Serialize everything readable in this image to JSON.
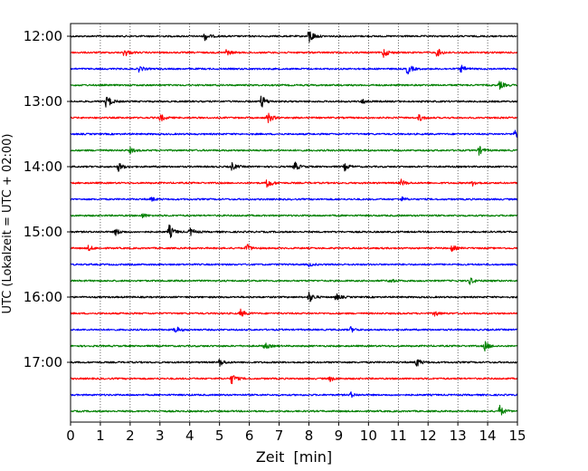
{
  "chart_data": {
    "type": "line",
    "title": "",
    "xlabel": "Zeit  [min]",
    "ylabel": "UTC (Lokalzeit = UTC + 02:00)",
    "xlim": [
      0,
      15
    ],
    "xticks": [
      0,
      1,
      2,
      3,
      4,
      5,
      6,
      7,
      8,
      9,
      10,
      11,
      12,
      13,
      14,
      15
    ],
    "x_grid": "dotted vertical lines at each minute",
    "y_tick_labels": [
      "12:00",
      "13:00",
      "14:00",
      "15:00",
      "16:00",
      "17:00"
    ],
    "trace_interval_minutes": 15,
    "trace_colors": [
      "#000000",
      "#ff0000",
      "#0000ff",
      "#008000"
    ],
    "traces": [
      {
        "start": "12:00",
        "color": "#000000",
        "bursts": [
          {
            "t": 4.5,
            "amp": 1.0
          },
          {
            "t": 8.0,
            "amp": 1.9
          }
        ]
      },
      {
        "start": "12:15",
        "color": "#ff0000",
        "bursts": [
          {
            "t": 1.8,
            "amp": 1.0
          },
          {
            "t": 5.2,
            "amp": 0.8
          },
          {
            "t": 10.5,
            "amp": 1.1
          },
          {
            "t": 12.3,
            "amp": 1.0
          }
        ]
      },
      {
        "start": "12:30",
        "color": "#0000ff",
        "bursts": [
          {
            "t": 2.3,
            "amp": 0.7
          },
          {
            "t": 11.3,
            "amp": 1.3
          },
          {
            "t": 13.1,
            "amp": 0.8
          }
        ]
      },
      {
        "start": "12:45",
        "color": "#008000",
        "bursts": [
          {
            "t": 14.4,
            "amp": 0.9
          }
        ]
      },
      {
        "start": "13:00",
        "color": "#000000",
        "bursts": [
          {
            "t": 1.2,
            "amp": 1.7
          },
          {
            "t": 6.4,
            "amp": 1.5
          },
          {
            "t": 9.8,
            "amp": 0.6
          }
        ]
      },
      {
        "start": "13:15",
        "color": "#ff0000",
        "bursts": [
          {
            "t": 3.0,
            "amp": 0.9
          },
          {
            "t": 6.6,
            "amp": 1.4
          },
          {
            "t": 11.7,
            "amp": 0.8
          }
        ]
      },
      {
        "start": "13:30",
        "color": "#0000ff",
        "bursts": [
          {
            "t": 14.9,
            "amp": 1.1
          }
        ]
      },
      {
        "start": "13:45",
        "color": "#008000",
        "bursts": [
          {
            "t": 2.0,
            "amp": 0.6
          },
          {
            "t": 13.7,
            "amp": 1.0
          }
        ]
      },
      {
        "start": "14:00",
        "color": "#000000",
        "bursts": [
          {
            "t": 1.6,
            "amp": 1.0
          },
          {
            "t": 5.4,
            "amp": 0.9
          },
          {
            "t": 7.5,
            "amp": 1.2
          },
          {
            "t": 9.2,
            "amp": 0.8
          }
        ]
      },
      {
        "start": "14:15",
        "color": "#ff0000",
        "bursts": [
          {
            "t": 6.6,
            "amp": 1.2
          },
          {
            "t": 11.1,
            "amp": 0.7
          },
          {
            "t": 13.5,
            "amp": 0.6
          }
        ]
      },
      {
        "start": "14:30",
        "color": "#0000ff",
        "bursts": [
          {
            "t": 2.7,
            "amp": 0.5
          },
          {
            "t": 11.1,
            "amp": 0.5
          }
        ]
      },
      {
        "start": "14:45",
        "color": "#008000",
        "bursts": [
          {
            "t": 2.4,
            "amp": 0.5
          }
        ]
      },
      {
        "start": "15:00",
        "color": "#000000",
        "bursts": [
          {
            "t": 1.5,
            "amp": 0.8
          },
          {
            "t": 3.3,
            "amp": 1.7
          },
          {
            "t": 4.0,
            "amp": 1.0
          }
        ]
      },
      {
        "start": "15:15",
        "color": "#ff0000",
        "bursts": [
          {
            "t": 0.6,
            "amp": 0.6
          },
          {
            "t": 5.9,
            "amp": 1.0
          },
          {
            "t": 12.8,
            "amp": 0.7
          }
        ]
      },
      {
        "start": "15:30",
        "color": "#0000ff",
        "bursts": [
          {
            "t": 8.0,
            "amp": 0.4
          }
        ]
      },
      {
        "start": "15:45",
        "color": "#008000",
        "bursts": [
          {
            "t": 10.7,
            "amp": 0.5
          },
          {
            "t": 13.4,
            "amp": 0.8
          }
        ]
      },
      {
        "start": "16:00",
        "color": "#000000",
        "bursts": [
          {
            "t": 8.0,
            "amp": 1.3
          },
          {
            "t": 8.9,
            "amp": 0.8
          }
        ]
      },
      {
        "start": "16:15",
        "color": "#ff0000",
        "bursts": [
          {
            "t": 5.7,
            "amp": 0.9
          },
          {
            "t": 12.2,
            "amp": 0.7
          }
        ]
      },
      {
        "start": "16:30",
        "color": "#0000ff",
        "bursts": [
          {
            "t": 3.5,
            "amp": 0.9
          },
          {
            "t": 9.4,
            "amp": 0.6
          }
        ]
      },
      {
        "start": "16:45",
        "color": "#008000",
        "bursts": [
          {
            "t": 6.5,
            "amp": 0.8
          },
          {
            "t": 13.9,
            "amp": 1.1
          }
        ]
      },
      {
        "start": "17:00",
        "color": "#000000",
        "bursts": [
          {
            "t": 5.0,
            "amp": 0.9
          },
          {
            "t": 11.6,
            "amp": 1.1
          }
        ]
      },
      {
        "start": "17:15",
        "color": "#ff0000",
        "bursts": [
          {
            "t": 5.4,
            "amp": 1.2
          },
          {
            "t": 8.7,
            "amp": 0.6
          }
        ]
      },
      {
        "start": "17:30",
        "color": "#0000ff",
        "bursts": [
          {
            "t": 9.4,
            "amp": 0.6
          }
        ]
      },
      {
        "start": "17:45",
        "color": "#008000",
        "bursts": [
          {
            "t": 14.4,
            "amp": 1.3
          }
        ]
      }
    ]
  }
}
